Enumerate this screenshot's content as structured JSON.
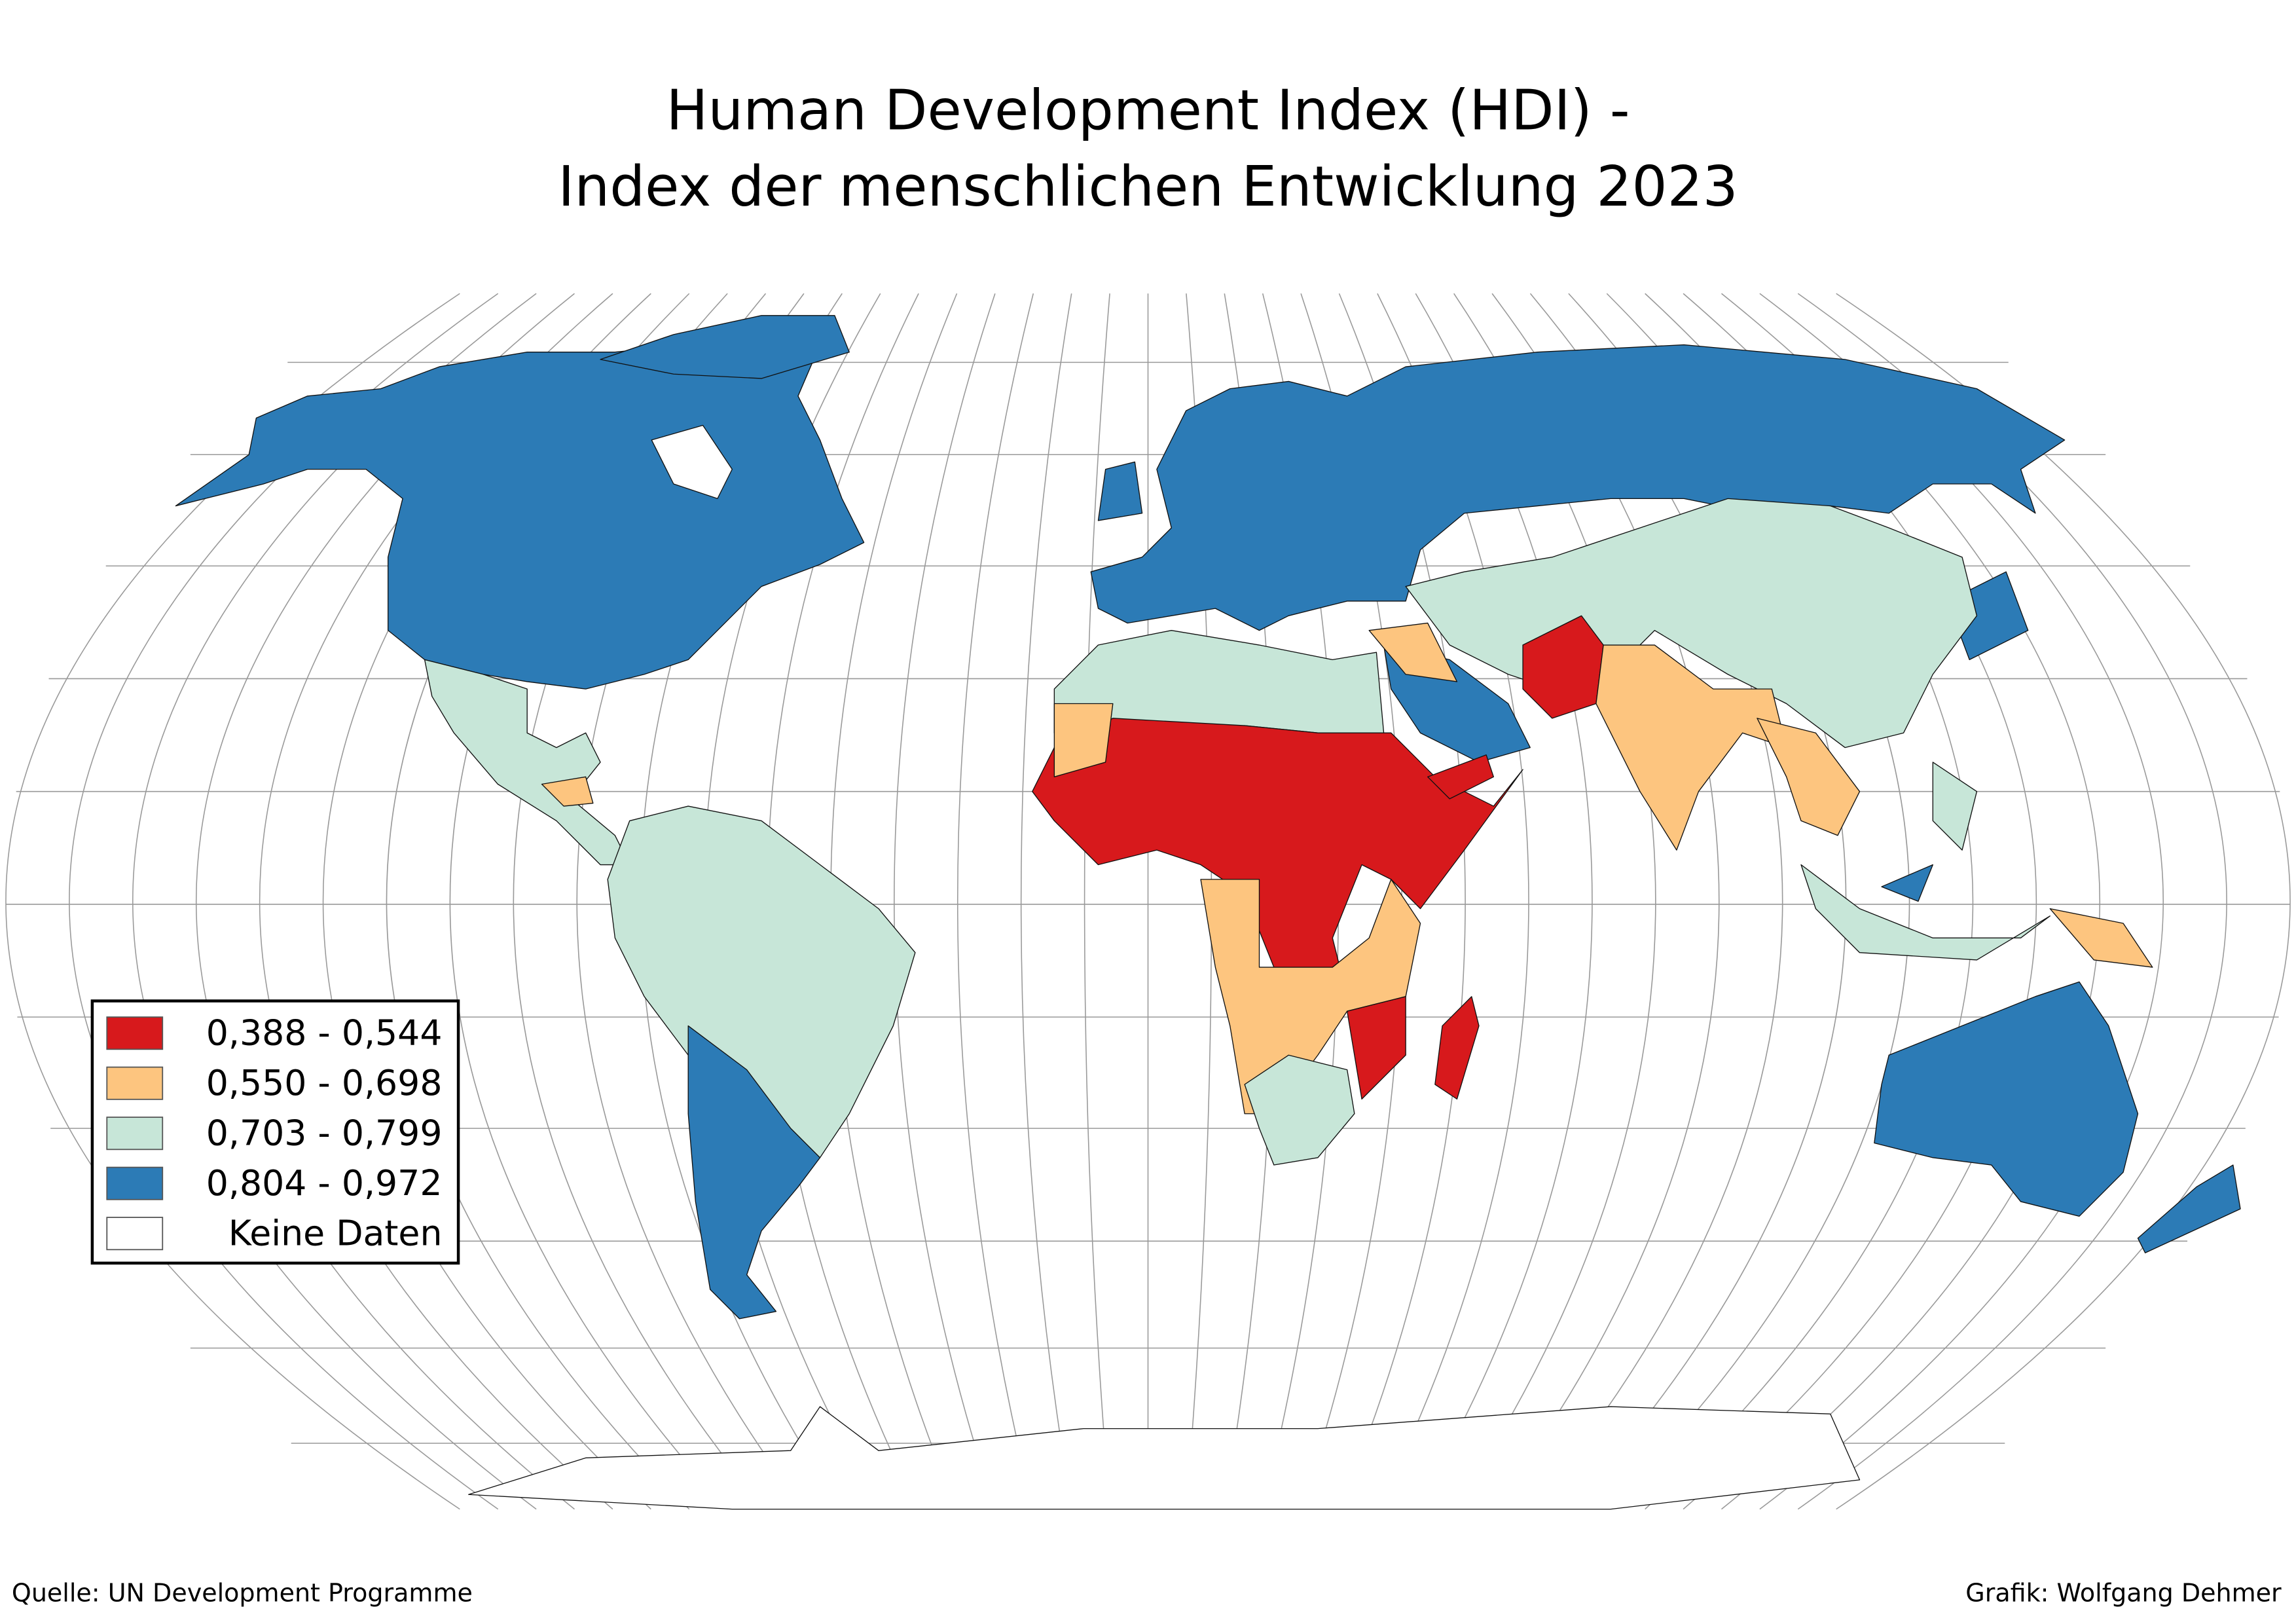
{
  "header": {
    "title": [
      "Human Development Index (HDI) -",
      "Index der menschlichen Entwicklung 2023"
    ]
  },
  "legend": {
    "items": [
      {
        "label": "0,388 - 0,544",
        "color": "#d7191c"
      },
      {
        "label": "0,550 - 0,698",
        "color": "#fdc57f"
      },
      {
        "label": "0,703 - 0,799",
        "color": "#c7e6d8"
      },
      {
        "label": "0,804 - 0,972",
        "color": "#2c7bb6"
      },
      {
        "label": "Keine Daten",
        "color": "#ffffff"
      }
    ]
  },
  "footer": {
    "source": "Quelle: UN Development Programme",
    "credit": "Grafik: Wolfgang Dehmer"
  }
}
